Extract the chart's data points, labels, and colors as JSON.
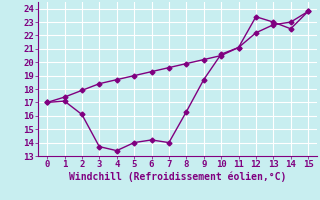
{
  "xlabel": "Windchill (Refroidissement éolien,°C)",
  "xlim": [
    -0.5,
    15.5
  ],
  "ylim": [
    13,
    24.5
  ],
  "yticks": [
    13,
    14,
    15,
    16,
    17,
    18,
    19,
    20,
    21,
    22,
    23,
    24
  ],
  "xticks": [
    0,
    1,
    2,
    3,
    4,
    5,
    6,
    7,
    8,
    9,
    10,
    11,
    12,
    13,
    14,
    15
  ],
  "background_color": "#c8eef0",
  "grid_color": "#ffffff",
  "line_color": "#800080",
  "line1_x": [
    0,
    1,
    2,
    3,
    4,
    5,
    6,
    7,
    8,
    9,
    10,
    11,
    12,
    13,
    14,
    15
  ],
  "line1_y": [
    17.0,
    17.1,
    16.1,
    13.7,
    13.4,
    14.0,
    14.2,
    14.0,
    16.3,
    18.7,
    20.6,
    21.1,
    23.4,
    23.0,
    22.5,
    23.8
  ],
  "line2_x": [
    0,
    1,
    2,
    3,
    4,
    5,
    6,
    7,
    8,
    9,
    10,
    11,
    12,
    13,
    14,
    15
  ],
  "line2_y": [
    17.0,
    17.4,
    17.9,
    18.4,
    18.7,
    19.0,
    19.3,
    19.6,
    19.9,
    20.2,
    20.5,
    21.1,
    22.2,
    22.8,
    23.0,
    23.8
  ],
  "marker": "D",
  "marker_size": 2.5,
  "linewidth": 1.0,
  "xlabel_fontsize": 7,
  "tick_fontsize": 6.5
}
